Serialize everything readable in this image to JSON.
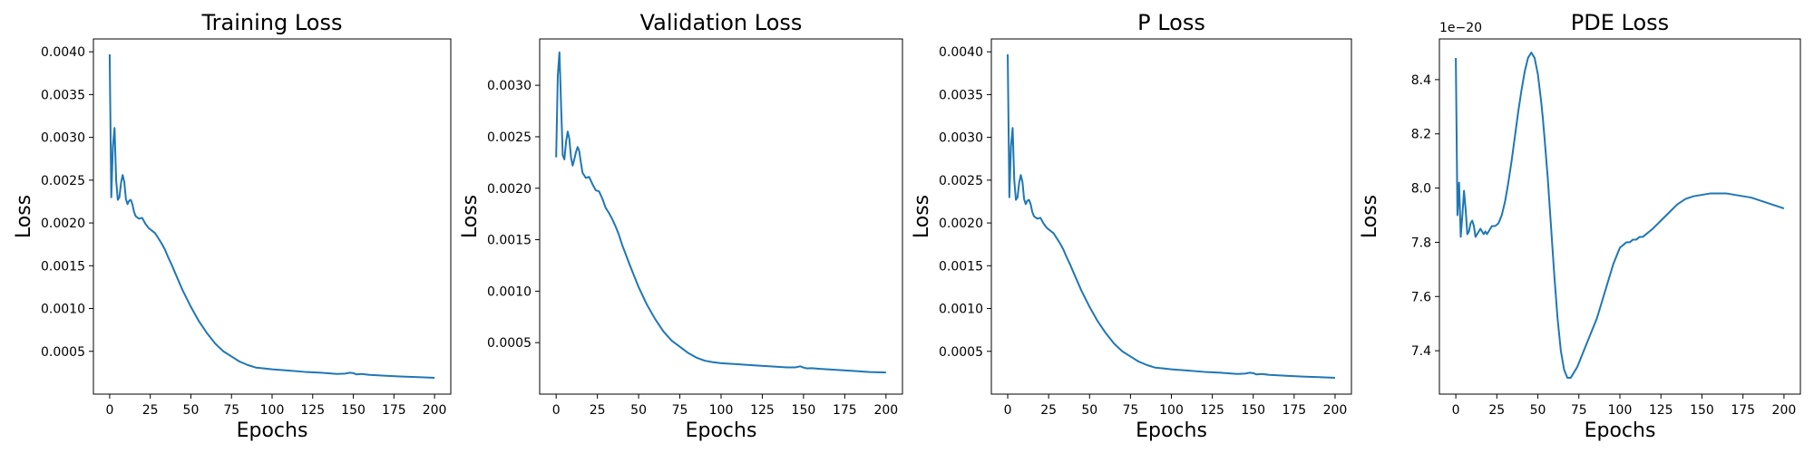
{
  "figure": {
    "accent_color": "#1f77b4"
  },
  "chart_data": [
    {
      "type": "line",
      "title": "Training Loss",
      "xlabel": "Epochs",
      "ylabel": "Loss",
      "xlim": [
        -10,
        210
      ],
      "ylim": [
        0.0,
        0.00415
      ],
      "xticks": [
        0,
        25,
        50,
        75,
        100,
        125,
        150,
        175,
        200
      ],
      "xtick_labels": [
        "0",
        "25",
        "50",
        "75",
        "100",
        "125",
        "150",
        "175",
        "200"
      ],
      "yticks": [
        0.0005,
        0.001,
        0.0015,
        0.002,
        0.0025,
        0.003,
        0.0035,
        0.004
      ],
      "ytick_labels": [
        "0.0005",
        "0.0010",
        "0.0015",
        "0.0020",
        "0.0025",
        "0.0030",
        "0.0035",
        "0.0040"
      ],
      "y_offset_label": "",
      "grid": false,
      "series": [
        {
          "color": "#1f77b4",
          "x": [
            0,
            1,
            2,
            3,
            4,
            5,
            6,
            7,
            8,
            9,
            10,
            11,
            12,
            13,
            14,
            15,
            16,
            18,
            20,
            22,
            24,
            26,
            28,
            30,
            32,
            34,
            36,
            38,
            40,
            45,
            50,
            55,
            60,
            65,
            70,
            75,
            80,
            85,
            90,
            95,
            100,
            110,
            120,
            130,
            140,
            145,
            148,
            150,
            152,
            155,
            160,
            170,
            180,
            190,
            200
          ],
          "y": [
            0.00397,
            0.0023,
            0.0029,
            0.00311,
            0.0025,
            0.00227,
            0.0023,
            0.00247,
            0.00256,
            0.00248,
            0.00228,
            0.00222,
            0.00226,
            0.00227,
            0.00222,
            0.00213,
            0.00208,
            0.00205,
            0.00206,
            0.00199,
            0.00194,
            0.00191,
            0.00188,
            0.00182,
            0.00176,
            0.00169,
            0.0016,
            0.00152,
            0.00143,
            0.00121,
            0.00102,
            0.00085,
            0.00071,
            0.00059,
            0.0005,
            0.00044,
            0.00038,
            0.00034,
            0.00031,
            0.0003,
            0.00029,
            0.000275,
            0.00026,
            0.00025,
            0.000235,
            0.00024,
            0.00025,
            0.000245,
            0.00023,
            0.000235,
            0.000225,
            0.000215,
            0.000205,
            0.000198,
            0.00019
          ]
        }
      ]
    },
    {
      "type": "line",
      "title": "Validation Loss",
      "xlabel": "Epochs",
      "ylabel": "Loss",
      "xlim": [
        -10,
        210
      ],
      "ylim": [
        0.0,
        0.00345
      ],
      "xticks": [
        0,
        25,
        50,
        75,
        100,
        125,
        150,
        175,
        200
      ],
      "xtick_labels": [
        "0",
        "25",
        "50",
        "75",
        "100",
        "125",
        "150",
        "175",
        "200"
      ],
      "yticks": [
        0.0005,
        0.001,
        0.0015,
        0.002,
        0.0025,
        0.003
      ],
      "ytick_labels": [
        "0.0005",
        "0.0010",
        "0.0015",
        "0.0020",
        "0.0025",
        "0.0030"
      ],
      "y_offset_label": "",
      "grid": false,
      "series": [
        {
          "color": "#1f77b4",
          "x": [
            0,
            1,
            2,
            3,
            4,
            5,
            6,
            7,
            8,
            9,
            10,
            11,
            12,
            13,
            14,
            15,
            16,
            18,
            20,
            22,
            24,
            26,
            28,
            30,
            32,
            34,
            36,
            38,
            40,
            45,
            50,
            55,
            60,
            65,
            70,
            75,
            80,
            85,
            90,
            95,
            100,
            110,
            120,
            130,
            140,
            145,
            148,
            150,
            152,
            155,
            160,
            170,
            180,
            190,
            200
          ],
          "y": [
            0.0023,
            0.0031,
            0.00332,
            0.0028,
            0.00232,
            0.00228,
            0.00245,
            0.00255,
            0.00248,
            0.0023,
            0.00222,
            0.00228,
            0.00235,
            0.0024,
            0.00236,
            0.00225,
            0.00215,
            0.0021,
            0.00211,
            0.00204,
            0.00198,
            0.00197,
            0.0019,
            0.00181,
            0.00176,
            0.0017,
            0.00163,
            0.00155,
            0.00145,
            0.00124,
            0.00104,
            0.00087,
            0.00073,
            0.00061,
            0.00052,
            0.00046,
            0.0004,
            0.000355,
            0.000325,
            0.00031,
            0.0003,
            0.00029,
            0.00028,
            0.00027,
            0.00026,
            0.00026,
            0.00027,
            0.000258,
            0.00025,
            0.000252,
            0.000245,
            0.000235,
            0.000225,
            0.000215,
            0.00021
          ]
        }
      ]
    },
    {
      "type": "line",
      "title": "P Loss",
      "xlabel": "Epochs",
      "ylabel": "Loss",
      "xlim": [
        -10,
        210
      ],
      "ylim": [
        0.0,
        0.00415
      ],
      "xticks": [
        0,
        25,
        50,
        75,
        100,
        125,
        150,
        175,
        200
      ],
      "xtick_labels": [
        "0",
        "25",
        "50",
        "75",
        "100",
        "125",
        "150",
        "175",
        "200"
      ],
      "yticks": [
        0.0005,
        0.001,
        0.0015,
        0.002,
        0.0025,
        0.003,
        0.0035,
        0.004
      ],
      "ytick_labels": [
        "0.0005",
        "0.0010",
        "0.0015",
        "0.0020",
        "0.0025",
        "0.0030",
        "0.0035",
        "0.0040"
      ],
      "y_offset_label": "",
      "grid": false,
      "series": [
        {
          "color": "#1f77b4",
          "x": [
            0,
            1,
            2,
            3,
            4,
            5,
            6,
            7,
            8,
            9,
            10,
            11,
            12,
            13,
            14,
            15,
            16,
            18,
            20,
            22,
            24,
            26,
            28,
            30,
            32,
            34,
            36,
            38,
            40,
            45,
            50,
            55,
            60,
            65,
            70,
            75,
            80,
            85,
            90,
            95,
            100,
            110,
            120,
            130,
            140,
            145,
            148,
            150,
            152,
            155,
            160,
            170,
            180,
            190,
            200
          ],
          "y": [
            0.00397,
            0.0023,
            0.0029,
            0.00311,
            0.0025,
            0.00227,
            0.0023,
            0.00247,
            0.00256,
            0.00248,
            0.00228,
            0.00222,
            0.00226,
            0.00227,
            0.00222,
            0.00213,
            0.00208,
            0.00205,
            0.00206,
            0.00199,
            0.00194,
            0.00191,
            0.00188,
            0.00182,
            0.00176,
            0.00169,
            0.0016,
            0.00152,
            0.00143,
            0.00121,
            0.00102,
            0.00085,
            0.00071,
            0.00059,
            0.0005,
            0.00044,
            0.00038,
            0.00034,
            0.00031,
            0.0003,
            0.00029,
            0.000275,
            0.00026,
            0.00025,
            0.000235,
            0.00024,
            0.00025,
            0.000245,
            0.00023,
            0.000235,
            0.000225,
            0.000215,
            0.000205,
            0.000198,
            0.00019
          ]
        }
      ]
    },
    {
      "type": "line",
      "title": "PDE Loss",
      "xlabel": "Epochs",
      "ylabel": "Loss",
      "xlim": [
        -10,
        210
      ],
      "ylim": [
        7.24,
        8.55
      ],
      "xticks": [
        0,
        25,
        50,
        75,
        100,
        125,
        150,
        175,
        200
      ],
      "xtick_labels": [
        "0",
        "25",
        "50",
        "75",
        "100",
        "125",
        "150",
        "175",
        "200"
      ],
      "yticks": [
        7.4,
        7.6,
        7.8,
        8.0,
        8.2,
        8.4
      ],
      "ytick_labels": [
        "7.4",
        "7.6",
        "7.8",
        "8.0",
        "8.2",
        "8.4"
      ],
      "y_offset_label": "1e−20",
      "grid": false,
      "series": [
        {
          "color": "#1f77b4",
          "x": [
            0,
            1,
            2,
            3,
            4,
            5,
            6,
            7,
            8,
            9,
            10,
            11,
            12,
            13,
            14,
            15,
            16,
            17,
            18,
            19,
            20,
            22,
            24,
            26,
            28,
            30,
            32,
            34,
            36,
            38,
            40,
            42,
            44,
            46,
            48,
            50,
            52,
            53,
            54,
            56,
            58,
            60,
            62,
            64,
            66,
            68,
            70,
            72,
            74,
            76,
            78,
            80,
            82,
            84,
            86,
            88,
            90,
            92,
            94,
            96,
            98,
            100,
            102,
            104,
            106,
            108,
            110,
            112,
            114,
            116,
            118,
            120,
            125,
            130,
            135,
            140,
            145,
            150,
            155,
            160,
            165,
            170,
            175,
            180,
            185,
            190,
            195,
            200
          ],
          "y": [
            8.48,
            7.9,
            8.02,
            7.82,
            7.9,
            7.99,
            7.92,
            7.83,
            7.84,
            7.87,
            7.88,
            7.86,
            7.82,
            7.83,
            7.84,
            7.85,
            7.84,
            7.83,
            7.84,
            7.83,
            7.84,
            7.86,
            7.86,
            7.87,
            7.9,
            7.95,
            8.02,
            8.1,
            8.19,
            8.28,
            8.36,
            8.43,
            8.48,
            8.5,
            8.48,
            8.42,
            8.32,
            8.26,
            8.19,
            8.04,
            7.86,
            7.68,
            7.52,
            7.4,
            7.33,
            7.3,
            7.3,
            7.32,
            7.34,
            7.37,
            7.4,
            7.43,
            7.46,
            7.49,
            7.52,
            7.56,
            7.6,
            7.64,
            7.68,
            7.72,
            7.75,
            7.78,
            7.79,
            7.8,
            7.8,
            7.81,
            7.81,
            7.82,
            7.82,
            7.83,
            7.84,
            7.85,
            7.88,
            7.91,
            7.94,
            7.96,
            7.97,
            7.975,
            7.98,
            7.98,
            7.98,
            7.975,
            7.97,
            7.965,
            7.955,
            7.945,
            7.935,
            7.925
          ]
        }
      ]
    }
  ]
}
